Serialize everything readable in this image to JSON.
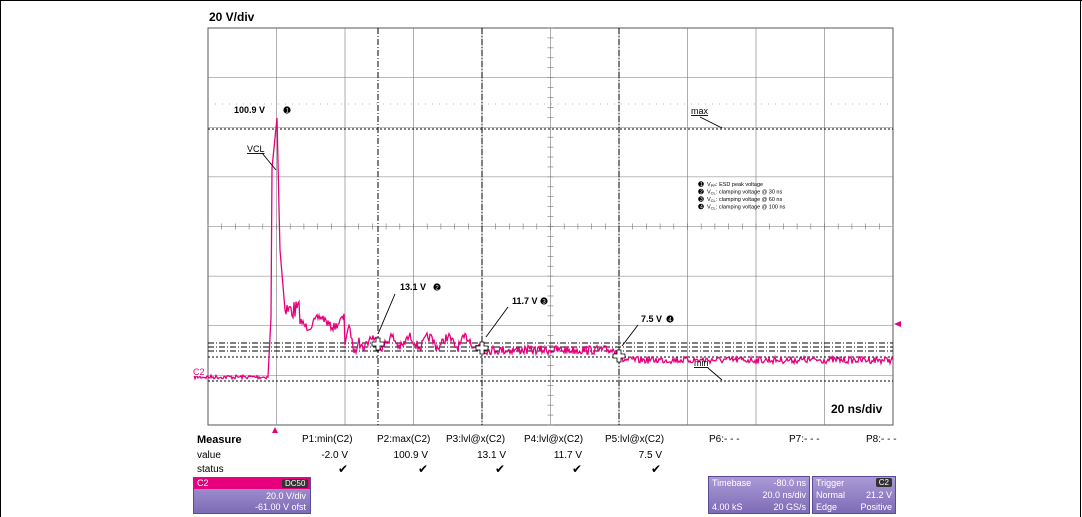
{
  "scale": {
    "vertical": "20 V/div",
    "horizontal": "20 ns/div"
  },
  "channel_tag": "C2",
  "annotations": {
    "peak": "100.9 V",
    "vcl": "VCL",
    "max": "max",
    "min": "min",
    "a30": "13.1 V",
    "a60": "11.7 V",
    "a100": "7.5 V"
  },
  "legend": [
    {
      "num": "1",
      "text": "V",
      "sub": "PP",
      "rest": ": ESD peak voltage"
    },
    {
      "num": "2",
      "text": "V",
      "sub": "CL",
      "rest": ": clamping voltage @ 30 ns"
    },
    {
      "num": "3",
      "text": "V",
      "sub": "CL",
      "rest": ": clamping voltage @ 60 ns"
    },
    {
      "num": "4",
      "text": "V",
      "sub": "CL",
      "rest": ": clamping voltage @ 100 ns"
    }
  ],
  "measure": {
    "header": "Measure",
    "row_value": "value",
    "row_status": "status",
    "columns": [
      {
        "name": "P1:min(C2)",
        "value": "-2.0 V",
        "status": "✔"
      },
      {
        "name": "P2:max(C2)",
        "value": "100.9 V",
        "status": "✔"
      },
      {
        "name": "P3:lvl@x(C2)",
        "value": "13.1 V",
        "status": "✔"
      },
      {
        "name": "P4:lvl@x(C2)",
        "value": "11.7 V",
        "status": "✔"
      },
      {
        "name": "P5:lvl@x(C2)",
        "value": "7.5 V",
        "status": "✔"
      },
      {
        "name": "P6:- - -",
        "value": "",
        "status": ""
      },
      {
        "name": "P7:- - -",
        "value": "",
        "status": ""
      },
      {
        "name": "P8:- - -",
        "value": "",
        "status": ""
      }
    ]
  },
  "channel_panel": {
    "name": "C2",
    "badge": "DC50",
    "vdiv": "20.0 V/div",
    "offset": "-61.00 V ofst"
  },
  "timebase_panel": {
    "label": "Timebase",
    "delay": "-80.0 ns",
    "tdiv": "20.0 ns/div",
    "samples": "4.00 kS",
    "rate": "20 GS/s"
  },
  "trigger_panel": {
    "label": "Trigger",
    "channel": "C2",
    "mode": "Normal",
    "level": "21.2 V",
    "type": "Edge",
    "slope": "Positive"
  },
  "colors": {
    "trace": "#e6007e",
    "grid": "#777777",
    "panel": "#8d7dc4",
    "channel": "#e6007e"
  }
}
